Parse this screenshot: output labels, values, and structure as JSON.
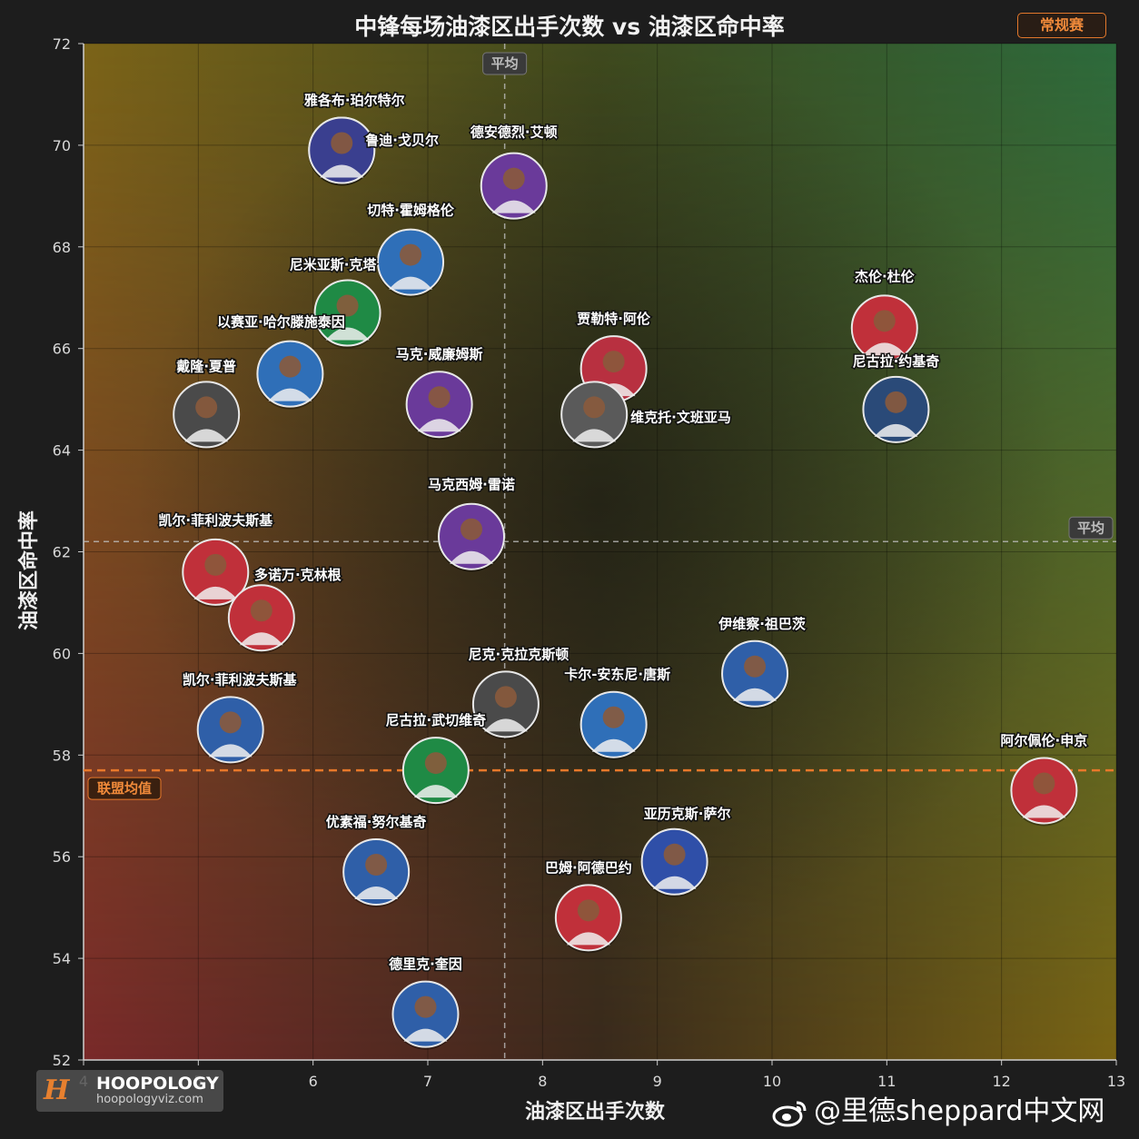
{
  "title": "中锋每场油漆区出手次数 vs 油漆区命中率",
  "season_badge": "常规赛",
  "avg_tag": "平均",
  "league_avg_tag": "联盟均值",
  "logo": {
    "name": "HOOPOLOGY",
    "url": "hoopologyviz.com",
    "mark": "H"
  },
  "watermark": "@里德sheppard中文网",
  "colors": {
    "league_avg": "#e8782a",
    "avg_line": "#bdbdbd",
    "top_left": "#7a6418",
    "top_right": "#2c6a3c",
    "bottom_left": "#7a2a2a",
    "bottom_right": "#7a6414"
  },
  "chart_data": {
    "type": "scatter",
    "xlabel": "油漆区出手次数",
    "ylabel": "油漆区命中率",
    "xlim": [
      4,
      13
    ],
    "ylim": [
      52,
      72
    ],
    "xticks": [
      4,
      5,
      6,
      7,
      8,
      9,
      10,
      11,
      12,
      13
    ],
    "yticks": [
      52,
      54,
      56,
      58,
      60,
      62,
      64,
      66,
      68,
      70,
      72
    ],
    "grid": true,
    "avg_x": 7.67,
    "avg_y": 62.2,
    "league_avg_y": 57.7,
    "points": [
      {
        "name": "雅各布·珀尔特尔",
        "x": 6.25,
        "y": 69.9,
        "color": "#5b3b8c"
      },
      {
        "name": "鲁迪·戈贝尔",
        "x": 6.25,
        "y": 69.9,
        "color": "#3a3f8f"
      },
      {
        "name": "德安德烈·艾顿",
        "x": 7.75,
        "y": 69.2,
        "color": "#6a3a9a"
      },
      {
        "name": "切特·霍姆格伦",
        "x": 6.85,
        "y": 67.7,
        "color": "#2f6fb8"
      },
      {
        "name": "尼米亚斯·克塔",
        "x": 6.3,
        "y": 66.7,
        "color": "#1f8a45"
      },
      {
        "name": "以赛亚·哈尔滕施泰因",
        "x": 5.8,
        "y": 65.5,
        "color": "#2f6fb8"
      },
      {
        "name": "戴隆·夏普",
        "x": 5.07,
        "y": 64.7,
        "color": "#4a4a4a"
      },
      {
        "name": "马克·威廉姆斯",
        "x": 7.1,
        "y": 64.9,
        "color": "#6a3a9a"
      },
      {
        "name": "贾勒特·阿伦",
        "x": 8.62,
        "y": 65.6,
        "color": "#b83040"
      },
      {
        "name": "维克托·文班亚马",
        "x": 8.45,
        "y": 64.7,
        "color": "#5a5a5a"
      },
      {
        "name": "杰伦·杜伦",
        "x": 10.98,
        "y": 66.4,
        "color": "#c0303a"
      },
      {
        "name": "尼古拉·约基奇",
        "x": 11.08,
        "y": 64.8,
        "color": "#2a4a78"
      },
      {
        "name": "马克西姆·雷诺",
        "x": 7.38,
        "y": 62.3,
        "color": "#6a3a9a"
      },
      {
        "name": "凯尔·菲利波夫斯基",
        "x": 5.15,
        "y": 61.6,
        "color": "#c0303a"
      },
      {
        "name": "多诺万·克林根",
        "x": 5.55,
        "y": 60.7,
        "color": "#c0303a"
      },
      {
        "name": "伊维察·祖巴茨",
        "x": 9.85,
        "y": 59.6,
        "color": "#2f5fa8"
      },
      {
        "name": "尼克·克拉克斯顿",
        "x": 7.68,
        "y": 59.0,
        "color": "#4a4a4a"
      },
      {
        "name": "卡尔-安东尼·唐斯",
        "x": 8.62,
        "y": 58.6,
        "color": "#2f6fb8"
      },
      {
        "name": "凯尔·菲利波夫斯基",
        "x": 5.28,
        "y": 58.5,
        "color": "#2f5fa8"
      },
      {
        "name": "尼古拉·武切维奇",
        "x": 7.07,
        "y": 57.7,
        "color": "#1f8a45"
      },
      {
        "name": "阿尔佩伦·申京",
        "x": 12.37,
        "y": 57.3,
        "color": "#c0303a"
      },
      {
        "name": "优素福·努尔基奇",
        "x": 6.55,
        "y": 55.7,
        "color": "#2f5fa8"
      },
      {
        "name": "亚历克斯·萨尔",
        "x": 9.15,
        "y": 55.9,
        "color": "#2f4fa8"
      },
      {
        "name": "巴姆·阿德巴约",
        "x": 8.4,
        "y": 54.8,
        "color": "#c0303a"
      },
      {
        "name": "德里克·奎因",
        "x": 6.98,
        "y": 52.9,
        "color": "#2f5fa8"
      }
    ]
  }
}
